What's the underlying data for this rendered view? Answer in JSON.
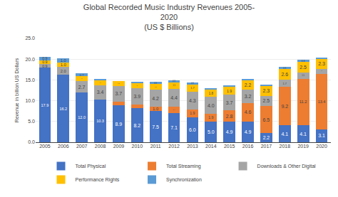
{
  "chart_data": {
    "type": "bar",
    "stacked": true,
    "title": "Global Recorded Music Industry Revenues 2005-\n2020\n(US $ Billions)",
    "ylabel": "Revenue in billion US Dollars",
    "categories": [
      "2005",
      "2006",
      "2007",
      "2008",
      "2009",
      "2010",
      "2011",
      "2012",
      "2013",
      "2014",
      "2015",
      "2016",
      "2017",
      "2018",
      "2019",
      "2020"
    ],
    "series": [
      {
        "name": "Total Physical",
        "color": "#4472C4",
        "values": [
          17.9,
          16.2,
          12.0,
          10.3,
          8.9,
          8.2,
          7.5,
          7.1,
          6.0,
          5.0,
          4.9,
          4.9,
          2.2,
          4.1,
          4.1,
          3.1
        ],
        "value_labels": [
          "17.9",
          "16.2",
          "12.0",
          "10.3",
          "8.9",
          "8.2",
          "7.5",
          "7.1",
          "6.0",
          "5.0",
          "4.9",
          "4.9",
          "2.2",
          "4.1",
          "4.1",
          "3.1"
        ]
      },
      {
        "name": "Total Streaming",
        "color": "#ED7D31",
        "values": [
          0.0,
          0.0,
          0.0,
          0.0,
          0.9,
          0.9,
          1.0,
          1.4,
          1.9,
          1.9,
          2.8,
          4.6,
          6.5,
          9.2,
          11.2,
          13.4
        ],
        "value_labels": [
          null,
          null,
          null,
          null,
          null,
          null,
          "1.0",
          "1.4",
          "1.9",
          "1.9",
          "2.8",
          "4.6",
          "6.5",
          "9.2",
          "11.2",
          "13.4"
        ]
      },
      {
        "name": "Downloads & Other Digital",
        "color": "#A5A5A5",
        "values": [
          0.9,
          2.0,
          2.7,
          3.4,
          3.7,
          3.9,
          4.2,
          4.4,
          4.3,
          4.0,
          3.7,
          3.2,
          2.5,
          1.7,
          1.5,
          1.2
        ],
        "value_labels": [
          "0.9",
          "2.0",
          "2.7",
          "3.4",
          "3.7",
          "3.9",
          "4.2",
          "4.4",
          "4.3",
          "4.0",
          "3.7",
          "3.2",
          "2.5",
          "1.7",
          "1.5",
          "1.2"
        ]
      },
      {
        "name": "Performance Rights",
        "color": "#FFC000",
        "values": [
          0.9,
          1.0,
          1.2,
          1.2,
          1.3,
          1.2,
          1.3,
          1.5,
          1.7,
          1.8,
          1.9,
          2.2,
          2.3,
          2.6,
          2.5,
          2.3
        ],
        "value_labels": [
          "0.9",
          "1.0",
          "1.2",
          "1.2",
          "1.3",
          "1.2",
          "1.3",
          "1.5",
          "1.7",
          "1.8",
          "1.9",
          "2.2",
          "2.3",
          "2.6",
          "2.5",
          "2.3"
        ]
      },
      {
        "name": "Synchronization",
        "color": "#5B9BD5",
        "values": [
          0.9,
          1.0,
          0.7,
          0.4,
          0.0,
          0.4,
          0.5,
          0.5,
          0.5,
          0.4,
          0.4,
          0.4,
          0.4,
          0.5,
          0.6,
          0.4
        ],
        "value_labels": [
          "0.9",
          "1.0",
          "0.7",
          null,
          null,
          null,
          "0.5",
          "0.5",
          "0.5",
          null,
          null,
          null,
          null,
          "0.5",
          "0.6",
          null
        ]
      }
    ],
    "ylim": [
      0,
      25.0
    ],
    "yticks": [
      {
        "value": 0,
        "label": "0.0"
      },
      {
        "value": 5,
        "label": "5.0"
      },
      {
        "value": 10,
        "label": "10.0"
      },
      {
        "value": 15,
        "label": "15.0"
      },
      {
        "value": 20,
        "label": "20.0"
      },
      {
        "value": 25,
        "label": "25.0"
      }
    ],
    "grid": true,
    "data_labels": true
  }
}
